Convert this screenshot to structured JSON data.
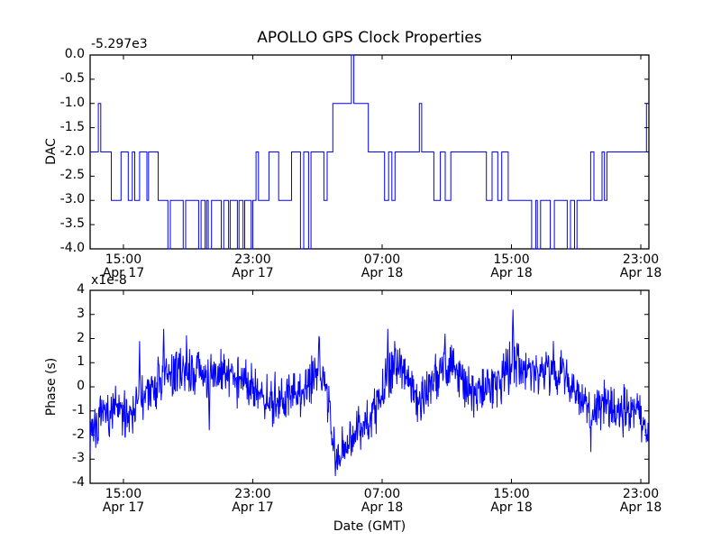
{
  "figure": {
    "title": "APOLLO GPS Clock Properties",
    "background_color": "#ffffff",
    "line_color": "#0000ff",
    "axis_color": "#000000",
    "tick_direction": "in"
  },
  "chart_data": [
    {
      "type": "line",
      "subplot": "top",
      "title": "APOLLO GPS Clock Properties",
      "ylabel": "DAC",
      "y_offset_text": "-5.297e3",
      "ylim": [
        -4.0,
        0.0
      ],
      "yticklabels": [
        "0.0",
        "-0.5",
        "-1.0",
        "-1.5",
        "-2.0",
        "-2.5",
        "-3.0",
        "-3.5",
        "-4.0"
      ],
      "ytick_values": [
        0,
        -0.5,
        -1,
        -1.5,
        -2,
        -2.5,
        -3,
        -3.5,
        -4
      ],
      "x_unit": "hours since Apr 17 00:00 GMT",
      "xlim": [
        12.94,
        47.5
      ],
      "xtick_values": [
        15,
        23,
        31,
        39,
        47
      ],
      "xticklabels": [
        [
          "15:00",
          "Apr 17"
        ],
        [
          "23:00",
          "Apr 17"
        ],
        [
          "07:00",
          "Apr 18"
        ],
        [
          "15:00",
          "Apr 18"
        ],
        [
          "23:00",
          "Apr 18"
        ]
      ],
      "line_color": "#0000ff",
      "grid": false,
      "legend": "none",
      "steps": [
        [
          12.94,
          -2
        ],
        [
          13.45,
          -1
        ],
        [
          13.6,
          -2
        ],
        [
          14.25,
          -3
        ],
        [
          14.85,
          -2
        ],
        [
          15.3,
          -3
        ],
        [
          15.55,
          -2
        ],
        [
          15.7,
          -3
        ],
        [
          16.0,
          -2
        ],
        [
          16.45,
          -3
        ],
        [
          16.55,
          -2
        ],
        [
          17.15,
          -3
        ],
        [
          17.75,
          -4
        ],
        [
          17.9,
          -3
        ],
        [
          18.7,
          -4
        ],
        [
          18.85,
          -3
        ],
        [
          19.65,
          -4
        ],
        [
          19.8,
          -3
        ],
        [
          20.05,
          -4
        ],
        [
          20.15,
          -3
        ],
        [
          20.25,
          -4
        ],
        [
          20.45,
          -3
        ],
        [
          21.05,
          -4
        ],
        [
          21.2,
          -3
        ],
        [
          21.5,
          -4
        ],
        [
          21.6,
          -3
        ],
        [
          22.05,
          -4
        ],
        [
          22.15,
          -3
        ],
        [
          22.4,
          -4
        ],
        [
          22.5,
          -3
        ],
        [
          22.9,
          -4
        ],
        [
          23.0,
          -3
        ],
        [
          23.2,
          -2
        ],
        [
          23.35,
          -3
        ],
        [
          24.0,
          -2
        ],
        [
          24.6,
          -3
        ],
        [
          25.4,
          -2
        ],
        [
          25.95,
          -4
        ],
        [
          26.15,
          -2
        ],
        [
          26.45,
          -4
        ],
        [
          26.6,
          -2
        ],
        [
          27.4,
          -3
        ],
        [
          27.6,
          -2
        ],
        [
          27.95,
          -1
        ],
        [
          29.1,
          0
        ],
        [
          29.25,
          -1
        ],
        [
          30.15,
          -2
        ],
        [
          31.15,
          -3
        ],
        [
          31.4,
          -2
        ],
        [
          31.6,
          -3
        ],
        [
          31.8,
          -2
        ],
        [
          33.3,
          -1
        ],
        [
          33.45,
          -2
        ],
        [
          34.2,
          -3
        ],
        [
          34.6,
          -2
        ],
        [
          34.9,
          -3
        ],
        [
          35.25,
          -2
        ],
        [
          37.45,
          -3
        ],
        [
          37.8,
          -2
        ],
        [
          38.15,
          -3
        ],
        [
          38.4,
          -2
        ],
        [
          38.8,
          -3
        ],
        [
          40.25,
          -4
        ],
        [
          40.5,
          -3
        ],
        [
          40.6,
          -4
        ],
        [
          40.8,
          -3
        ],
        [
          41.4,
          -4
        ],
        [
          41.65,
          -3
        ],
        [
          42.45,
          -4
        ],
        [
          42.65,
          -3
        ],
        [
          42.9,
          -4
        ],
        [
          43.05,
          -3
        ],
        [
          43.9,
          -2
        ],
        [
          44.1,
          -3
        ],
        [
          44.6,
          -2
        ],
        [
          44.75,
          -3
        ],
        [
          44.9,
          -2
        ],
        [
          47.35,
          -1
        ],
        [
          47.5,
          -1
        ]
      ]
    },
    {
      "type": "line",
      "subplot": "bottom",
      "ylabel": "Phase (s)",
      "y_scale_text": "x1e-8",
      "xlabel": "Date (GMT)",
      "ylim": [
        -4,
        4
      ],
      "yticklabels": [
        "4",
        "3",
        "2",
        "1",
        "0",
        "-1",
        "-2",
        "-3",
        "-4"
      ],
      "ytick_values": [
        4,
        3,
        2,
        1,
        0,
        -1,
        -2,
        -3,
        -4
      ],
      "x_unit": "hours since Apr 17 00:00 GMT",
      "xlim": [
        12.94,
        47.5
      ],
      "xtick_values": [
        15,
        23,
        31,
        39,
        47
      ],
      "xticklabels": [
        [
          "15:00",
          "Apr 17"
        ],
        [
          "23:00",
          "Apr 17"
        ],
        [
          "07:00",
          "Apr 18"
        ],
        [
          "15:00",
          "Apr 18"
        ],
        [
          "23:00",
          "Apr 18"
        ]
      ],
      "line_color": "#0000ff",
      "grid": false,
      "legend": "none",
      "noise_band_amp": 0.55,
      "trend_anchors": [
        [
          12.94,
          -1.7
        ],
        [
          13.5,
          -1.5
        ],
        [
          14.0,
          -1.1
        ],
        [
          14.5,
          -0.9
        ],
        [
          15.0,
          -1.2
        ],
        [
          15.5,
          -0.9
        ],
        [
          16.0,
          -0.6
        ],
        [
          16.5,
          -0.3
        ],
        [
          17.0,
          0.1
        ],
        [
          17.5,
          0.3
        ],
        [
          18.0,
          0.5
        ],
        [
          18.5,
          0.7
        ],
        [
          19.0,
          0.6
        ],
        [
          19.5,
          0.7
        ],
        [
          20.0,
          0.5
        ],
        [
          20.5,
          0.4
        ],
        [
          21.0,
          0.5
        ],
        [
          21.5,
          0.6
        ],
        [
          22.0,
          0.4
        ],
        [
          22.5,
          0.3
        ],
        [
          23.0,
          0.1
        ],
        [
          23.5,
          -0.2
        ],
        [
          24.0,
          -0.5
        ],
        [
          24.4,
          -0.7
        ],
        [
          24.8,
          -0.4
        ],
        [
          25.2,
          -0.3
        ],
        [
          25.6,
          -0.4
        ],
        [
          26.0,
          -0.3
        ],
        [
          26.4,
          0.0
        ],
        [
          26.8,
          0.6
        ],
        [
          27.1,
          1.0
        ],
        [
          27.4,
          0.3
        ],
        [
          27.7,
          -0.9
        ],
        [
          28.0,
          -2.2
        ],
        [
          28.3,
          -2.7
        ],
        [
          28.6,
          -2.4
        ],
        [
          29.0,
          -2.0
        ],
        [
          29.5,
          -1.8
        ],
        [
          30.0,
          -1.5
        ],
        [
          30.5,
          -1.1
        ],
        [
          31.0,
          -0.2
        ],
        [
          31.4,
          0.5
        ],
        [
          31.8,
          0.9
        ],
        [
          32.2,
          0.8
        ],
        [
          32.6,
          0.4
        ],
        [
          33.0,
          -0.2
        ],
        [
          33.4,
          -0.5
        ],
        [
          33.8,
          -0.1
        ],
        [
          34.2,
          0.3
        ],
        [
          34.6,
          0.6
        ],
        [
          35.0,
          0.8
        ],
        [
          35.4,
          0.8
        ],
        [
          35.8,
          0.4
        ],
        [
          36.2,
          -0.1
        ],
        [
          36.6,
          -0.3
        ],
        [
          37.0,
          -0.2
        ],
        [
          37.4,
          0.0
        ],
        [
          37.8,
          0.2
        ],
        [
          38.2,
          0.3
        ],
        [
          38.6,
          0.5
        ],
        [
          39.0,
          0.8
        ],
        [
          39.3,
          1.0
        ],
        [
          39.6,
          0.9
        ],
        [
          40.0,
          0.7
        ],
        [
          40.5,
          0.6
        ],
        [
          41.0,
          0.7
        ],
        [
          41.5,
          0.6
        ],
        [
          42.0,
          0.5
        ],
        [
          42.5,
          0.3
        ],
        [
          43.0,
          -0.2
        ],
        [
          43.5,
          -0.7
        ],
        [
          43.9,
          -1.0
        ],
        [
          44.3,
          -0.8
        ],
        [
          44.7,
          -0.7
        ],
        [
          45.1,
          -0.9
        ],
        [
          45.5,
          -0.8
        ],
        [
          46.0,
          -0.9
        ],
        [
          46.5,
          -1.0
        ],
        [
          47.0,
          -1.2
        ],
        [
          47.5,
          -1.8
        ]
      ],
      "spikes": [
        [
          16.0,
          1.9
        ],
        [
          17.5,
          2.4
        ],
        [
          18.45,
          1.4
        ],
        [
          20.3,
          -1.8
        ],
        [
          27.1,
          2.1
        ],
        [
          28.1,
          -3.7
        ],
        [
          28.4,
          -3.3
        ],
        [
          31.35,
          2.4
        ],
        [
          33.4,
          -1.4
        ],
        [
          34.9,
          2.2
        ],
        [
          39.1,
          3.2
        ],
        [
          41.6,
          1.9
        ],
        [
          43.9,
          -2.7
        ],
        [
          45.9,
          -2.1
        ],
        [
          47.35,
          -2.3
        ]
      ]
    }
  ]
}
